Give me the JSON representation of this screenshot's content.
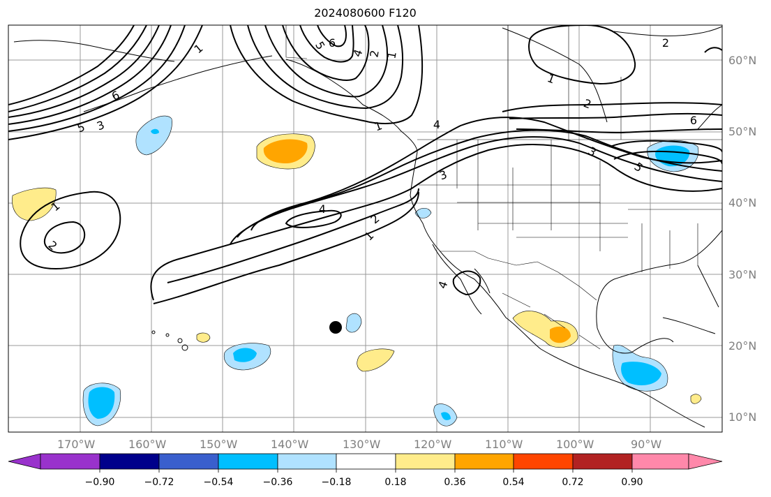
{
  "title": "2024080600 F120",
  "lat_labels": [
    "60°N",
    "50°N",
    "40°N",
    "30°N",
    "20°N",
    "10°N"
  ],
  "lon_labels": [
    "170°W",
    "160°W",
    "150°W",
    "140°W",
    "130°W",
    "120°W",
    "110°W",
    "100°W",
    "90°W"
  ],
  "contour_labels": [
    "1",
    "2",
    "3",
    "4",
    "5",
    "6",
    "1",
    "2",
    "3",
    "4",
    "5",
    "6",
    "1",
    "2",
    "3",
    "4",
    "1",
    "2",
    "3",
    "4",
    "5",
    "6",
    "1",
    "2",
    "1",
    "2",
    "4",
    "2"
  ],
  "colorbar": {
    "ticks": [
      "−0.90",
      "−0.72",
      "−0.54",
      "−0.36",
      "−0.18",
      "0.18",
      "0.36",
      "0.54",
      "0.72",
      "0.90"
    ],
    "colors": [
      "#9932cc",
      "#00008b",
      "#3a5fcd",
      "#00bfff",
      "#b0e2ff",
      "#ffffff",
      "#ffec8b",
      "#ffa500",
      "#ff4500",
      "#b22222",
      "#ff88aa"
    ]
  },
  "colors": {
    "light_blue": "#b0e2ff",
    "blue": "#00bfff",
    "light_yellow": "#ffec8b",
    "orange": "#ffa500",
    "grid": "#999999"
  }
}
